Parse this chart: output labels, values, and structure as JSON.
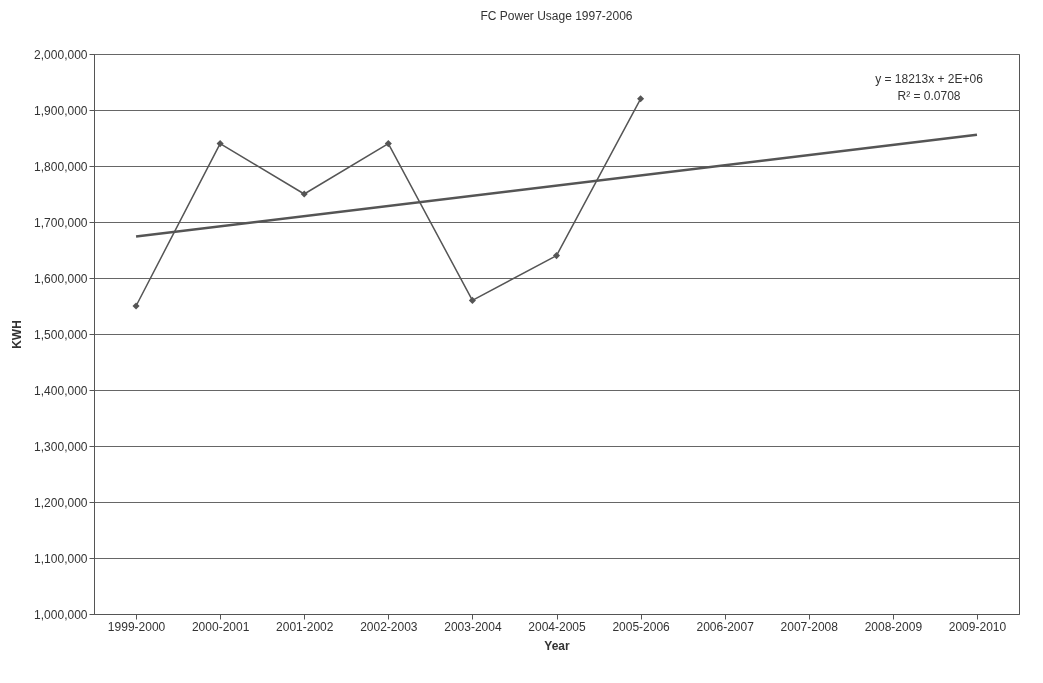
{
  "chart_data": {
    "type": "line",
    "title": "FC Power Usage 1997-2006",
    "xlabel": "Year",
    "ylabel": "KWH",
    "categories": [
      "1999-2000",
      "2000-2001",
      "2001-2002",
      "2002-2003",
      "2003-2004",
      "2004-2005",
      "2005-2006",
      "2006-2007",
      "2007-2008",
      "2008-2009",
      "2009-2010"
    ],
    "series": [
      {
        "color": "#555555",
        "values": [
          1550000,
          1840000,
          1750000,
          1840000,
          1560000,
          1640000,
          1920000,
          null,
          null,
          null,
          null
        ],
        "marker": "diamond"
      },
      {
        "type": "line",
        "color": "#555555",
        "x": [
          "1999-2000",
          "2009-2010"
        ],
        "values": [
          1674000,
          1856000
        ],
        "marker": "none"
      }
    ],
    "ylim": [
      1000000,
      2000000
    ],
    "yticks": [
      {
        "value": 1000000,
        "label": "1,000,000"
      },
      {
        "value": 1100000,
        "label": "1,100,000"
      },
      {
        "value": 1200000,
        "label": "1,200,000"
      },
      {
        "value": 1300000,
        "label": "1,300,000"
      },
      {
        "value": 1400000,
        "label": "1,400,000"
      },
      {
        "value": 1500000,
        "label": "1,500,000"
      },
      {
        "value": 1600000,
        "label": "1,600,000"
      },
      {
        "value": 1700000,
        "label": "1,700,000"
      },
      {
        "value": 1800000,
        "label": "1,800,000"
      },
      {
        "value": 1900000,
        "label": "1,900,000"
      },
      {
        "value": 2000000,
        "label": "2,000,000"
      }
    ],
    "grid": "y",
    "annotations": [
      "y = 18213x + 2E+06",
      "R² = 0.0708"
    ]
  }
}
